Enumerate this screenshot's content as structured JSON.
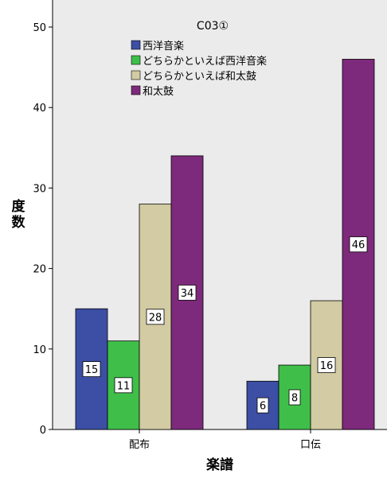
{
  "chart_data": {
    "type": "bar",
    "legend_title": "C03①",
    "xlabel": "楽譜",
    "ylabel": "度数",
    "ylim": [
      0,
      52
    ],
    "yticks": [
      0,
      10,
      20,
      30,
      40,
      50
    ],
    "grid": false,
    "legend_position": "top-left",
    "categories": [
      "配布",
      "口伝"
    ],
    "series": [
      {
        "name": "西洋音楽",
        "color": "#3c4fa4",
        "values": [
          15,
          6
        ]
      },
      {
        "name": "どちらかといえば西洋音楽",
        "color": "#3fbf4a",
        "values": [
          11,
          8
        ]
      },
      {
        "name": "どちらかといえば和太鼓",
        "color": "#d2cba3",
        "values": [
          28,
          16
        ]
      },
      {
        "name": "和太鼓",
        "color": "#7e2a7c",
        "values": [
          34,
          46
        ]
      }
    ]
  }
}
